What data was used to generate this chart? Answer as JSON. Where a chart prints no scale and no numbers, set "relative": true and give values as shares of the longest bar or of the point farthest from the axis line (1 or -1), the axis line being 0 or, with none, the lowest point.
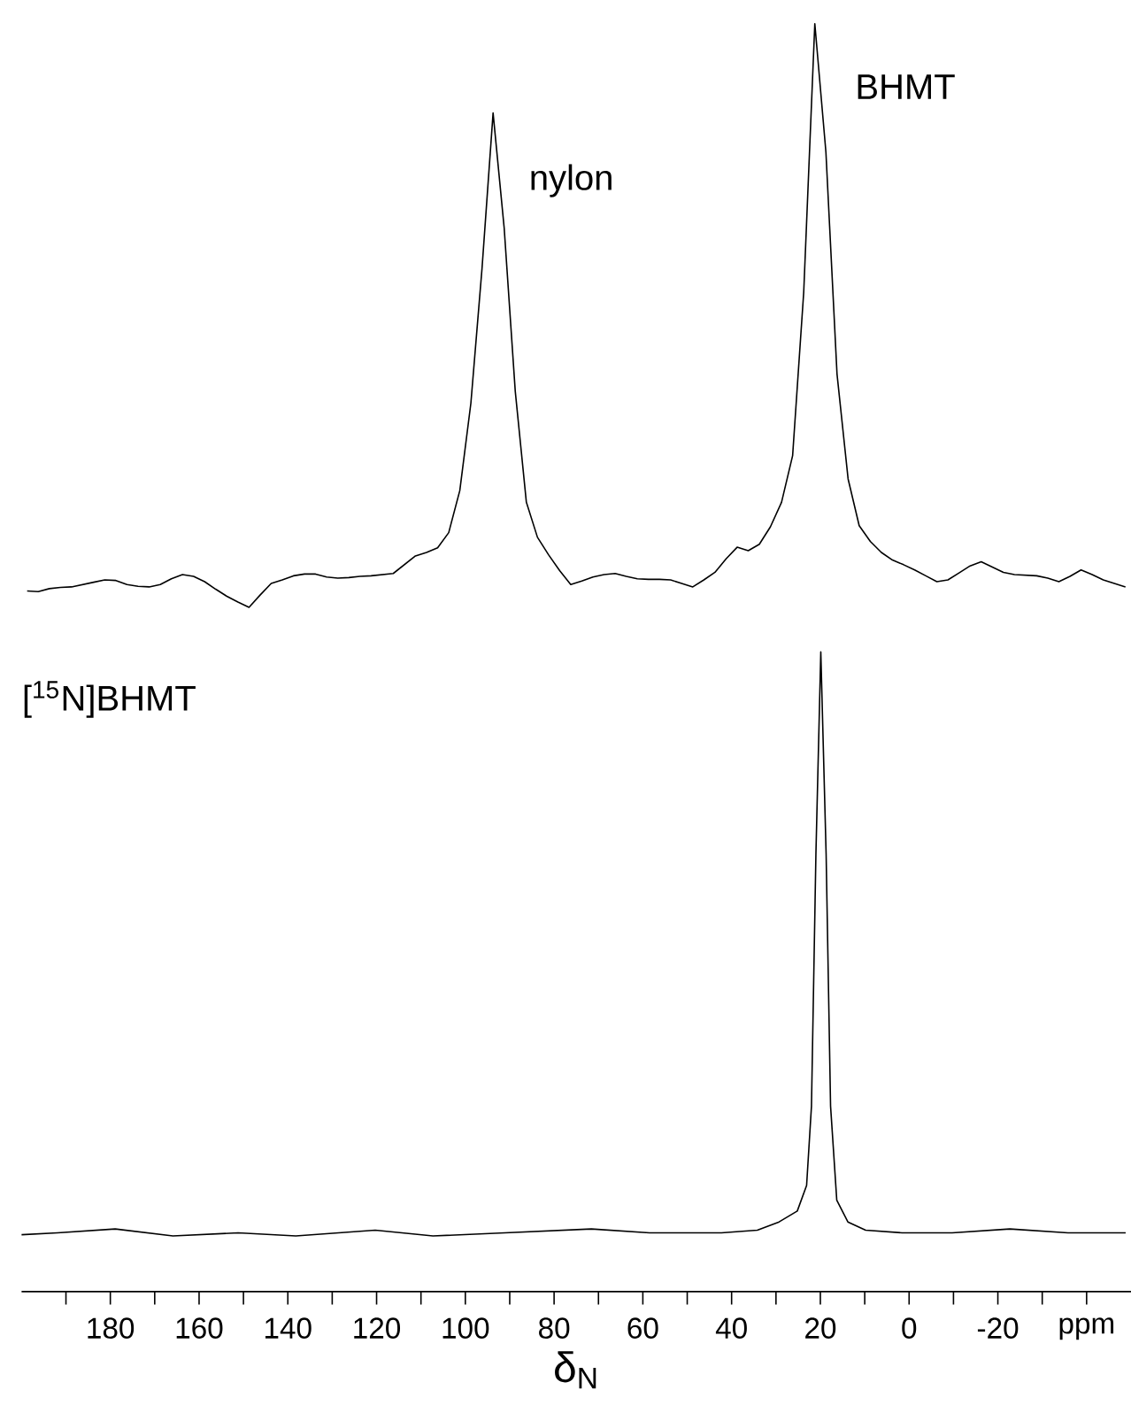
{
  "chart_data": [
    {
      "type": "line",
      "relative": true,
      "tick_labels": false,
      "categories": [
        null,
        null,
        null,
        null,
        null,
        null,
        null,
        null,
        null,
        null,
        null,
        null,
        null,
        null,
        null,
        null,
        null,
        null,
        null,
        null,
        null,
        null,
        null,
        null,
        null,
        null,
        null,
        null,
        null,
        null,
        null,
        null,
        null,
        null,
        null,
        null,
        null,
        null,
        null,
        null,
        null,
        null,
        null,
        null,
        null,
        null,
        null,
        null,
        null,
        null,
        null,
        null,
        null,
        null,
        null,
        null,
        null,
        null,
        null,
        null,
        null,
        null,
        null,
        null,
        null,
        null,
        null,
        null,
        null,
        null,
        null,
        null,
        null,
        null,
        null,
        null,
        null,
        null,
        null,
        null,
        null,
        null,
        null,
        null,
        null,
        null,
        null,
        null,
        null,
        null,
        null,
        null,
        null,
        null,
        null,
        null,
        null,
        null,
        null,
        null
      ],
      "annotations": [
        "nylon",
        "BHMT"
      ],
      "series": [
        {
          "color": "#000000",
          "values": [
            0.028,
            0.027,
            0.032,
            0.034,
            0.035,
            0.039,
            0.043,
            0.047,
            0.046,
            0.039,
            0.036,
            0.035,
            0.039,
            0.049,
            0.056,
            0.053,
            0.044,
            0.031,
            0.019,
            0.009,
            0,
            0.021,
            0.041,
            0.047,
            0.054,
            0.057,
            0.057,
            0.052,
            0.05,
            0.051,
            0.053,
            0.054,
            0.056,
            0.058,
            0.073,
            0.088,
            0.094,
            0.102,
            0.128,
            0.2,
            0.35,
            0.58,
            0.847,
            0.65,
            0.37,
            0.18,
            0.12,
            0.09,
            0.063,
            0.039,
            0.045,
            0.052,
            0.056,
            0.058,
            0.053,
            0.049,
            0.048,
            0.048,
            0.047,
            0.041,
            0.035,
            0.047,
            0.06,
            0.083,
            0.103,
            0.097,
            0.108,
            0.138,
            0.18,
            0.26,
            0.54,
            1,
            0.78,
            0.4,
            0.22,
            0.14,
            0.113,
            0.094,
            0.081,
            0.073,
            0.064,
            0.054,
            0.044,
            0.047,
            0.059,
            0.071,
            0.078,
            0.069,
            0.06,
            0.056,
            0.055,
            0.054,
            0.05,
            0.044,
            0.053,
            0.064,
            0.056,
            0.047,
            0.041,
            0.035
          ]
        }
      ]
    },
    {
      "type": "line",
      "relative": true,
      "xlim": [
        200,
        -50
      ],
      "tick_labels": "x",
      "xlabel": "δ$_{N}$",
      "xticks": [
        {
          "value": 190,
          "label": null
        },
        180,
        {
          "value": 170,
          "label": null
        },
        160,
        {
          "value": 150,
          "label": null
        },
        140,
        {
          "value": 130,
          "label": null
        },
        120,
        {
          "value": 110,
          "label": null
        },
        100,
        {
          "value": 90,
          "label": null
        },
        80,
        {
          "value": 70,
          "label": null
        },
        60,
        {
          "value": 50,
          "label": null
        },
        40,
        {
          "value": 30,
          "label": null
        },
        20,
        {
          "value": 10,
          "label": null
        },
        0,
        {
          "value": -10,
          "label": null
        },
        -20,
        {
          "value": -30,
          "label": null
        },
        {
          "value": -40,
          "label": "ppm"
        }
      ],
      "annotations": [
        "[$^{15}$N]BHMT"
      ],
      "series": [
        {
          "color": "#000000",
          "x": [
            200.0,
            191.9,
            178.9,
            165.9,
            151.2,
            138.2,
            120.3,
            107.3,
            91.1,
            71.6,
            58.5,
            42.3,
            34.2,
            29.3,
            25.2,
            23.1,
            22.0,
            21.0,
            19.9,
            18.7,
            17.7,
            16.3,
            13.8,
            9.8,
            1.6,
            -9.7,
            -22.7,
            -35.8,
            -48.8
          ],
          "values": [
            0.089,
            0.092,
            0.098,
            0.087,
            0.092,
            0.087,
            0.096,
            0.087,
            0.092,
            0.098,
            0.092,
            0.092,
            0.096,
            0.109,
            0.126,
            0.166,
            0.29,
            0.684,
            1,
            0.684,
            0.29,
            0.143,
            0.109,
            0.096,
            0.092,
            0.092,
            0.098,
            0.092,
            0.092
          ]
        }
      ]
    }
  ]
}
